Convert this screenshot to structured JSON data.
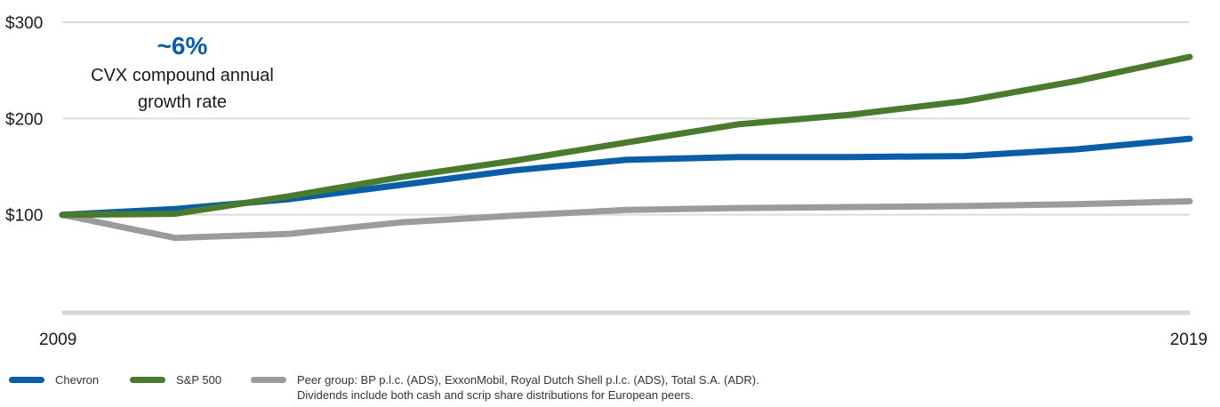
{
  "chart_data": {
    "type": "line",
    "x": [
      2009,
      2010,
      2011,
      2012,
      2013,
      2014,
      2015,
      2016,
      2017,
      2018,
      2019
    ],
    "xtick_labels": [
      "2009",
      "2019"
    ],
    "ytick_labels": [
      "$100",
      "$200",
      "$300"
    ],
    "yticks": [
      100,
      200,
      300
    ],
    "xlim": [
      2009,
      2019
    ],
    "ylim": [
      0,
      300
    ],
    "grid": true,
    "legend_position": "bottom-left",
    "annotation": {
      "value": "~6%",
      "line1": "CVX compound annual",
      "line2": "growth rate"
    },
    "series": [
      {
        "name": "Chevron",
        "color": "#0a5ea8",
        "values": [
          100,
          106,
          116,
          131,
          146,
          157,
          160,
          160,
          161,
          168,
          179
        ]
      },
      {
        "name": "S&P 500",
        "color": "#4a7a2e",
        "values": [
          100,
          101,
          119,
          139,
          156,
          175,
          194,
          204,
          218,
          239,
          264
        ]
      },
      {
        "name": "Peer group: BP p.l.c. (ADS), ExxonMobil, Royal Dutch Shell p.l.c. (ADS), Total S.A. (ADR).",
        "color": "#9b9b9e",
        "values": [
          100,
          76,
          80,
          92,
          99,
          105,
          107,
          108,
          109,
          111,
          114
        ]
      }
    ],
    "footnote": "Dividends include both cash and scrip share distributions for European peers."
  },
  "colors": {
    "grid": "#dcdcdc",
    "baseline": "#d6d6d6",
    "annotation_accent": "#0a5ea8"
  }
}
